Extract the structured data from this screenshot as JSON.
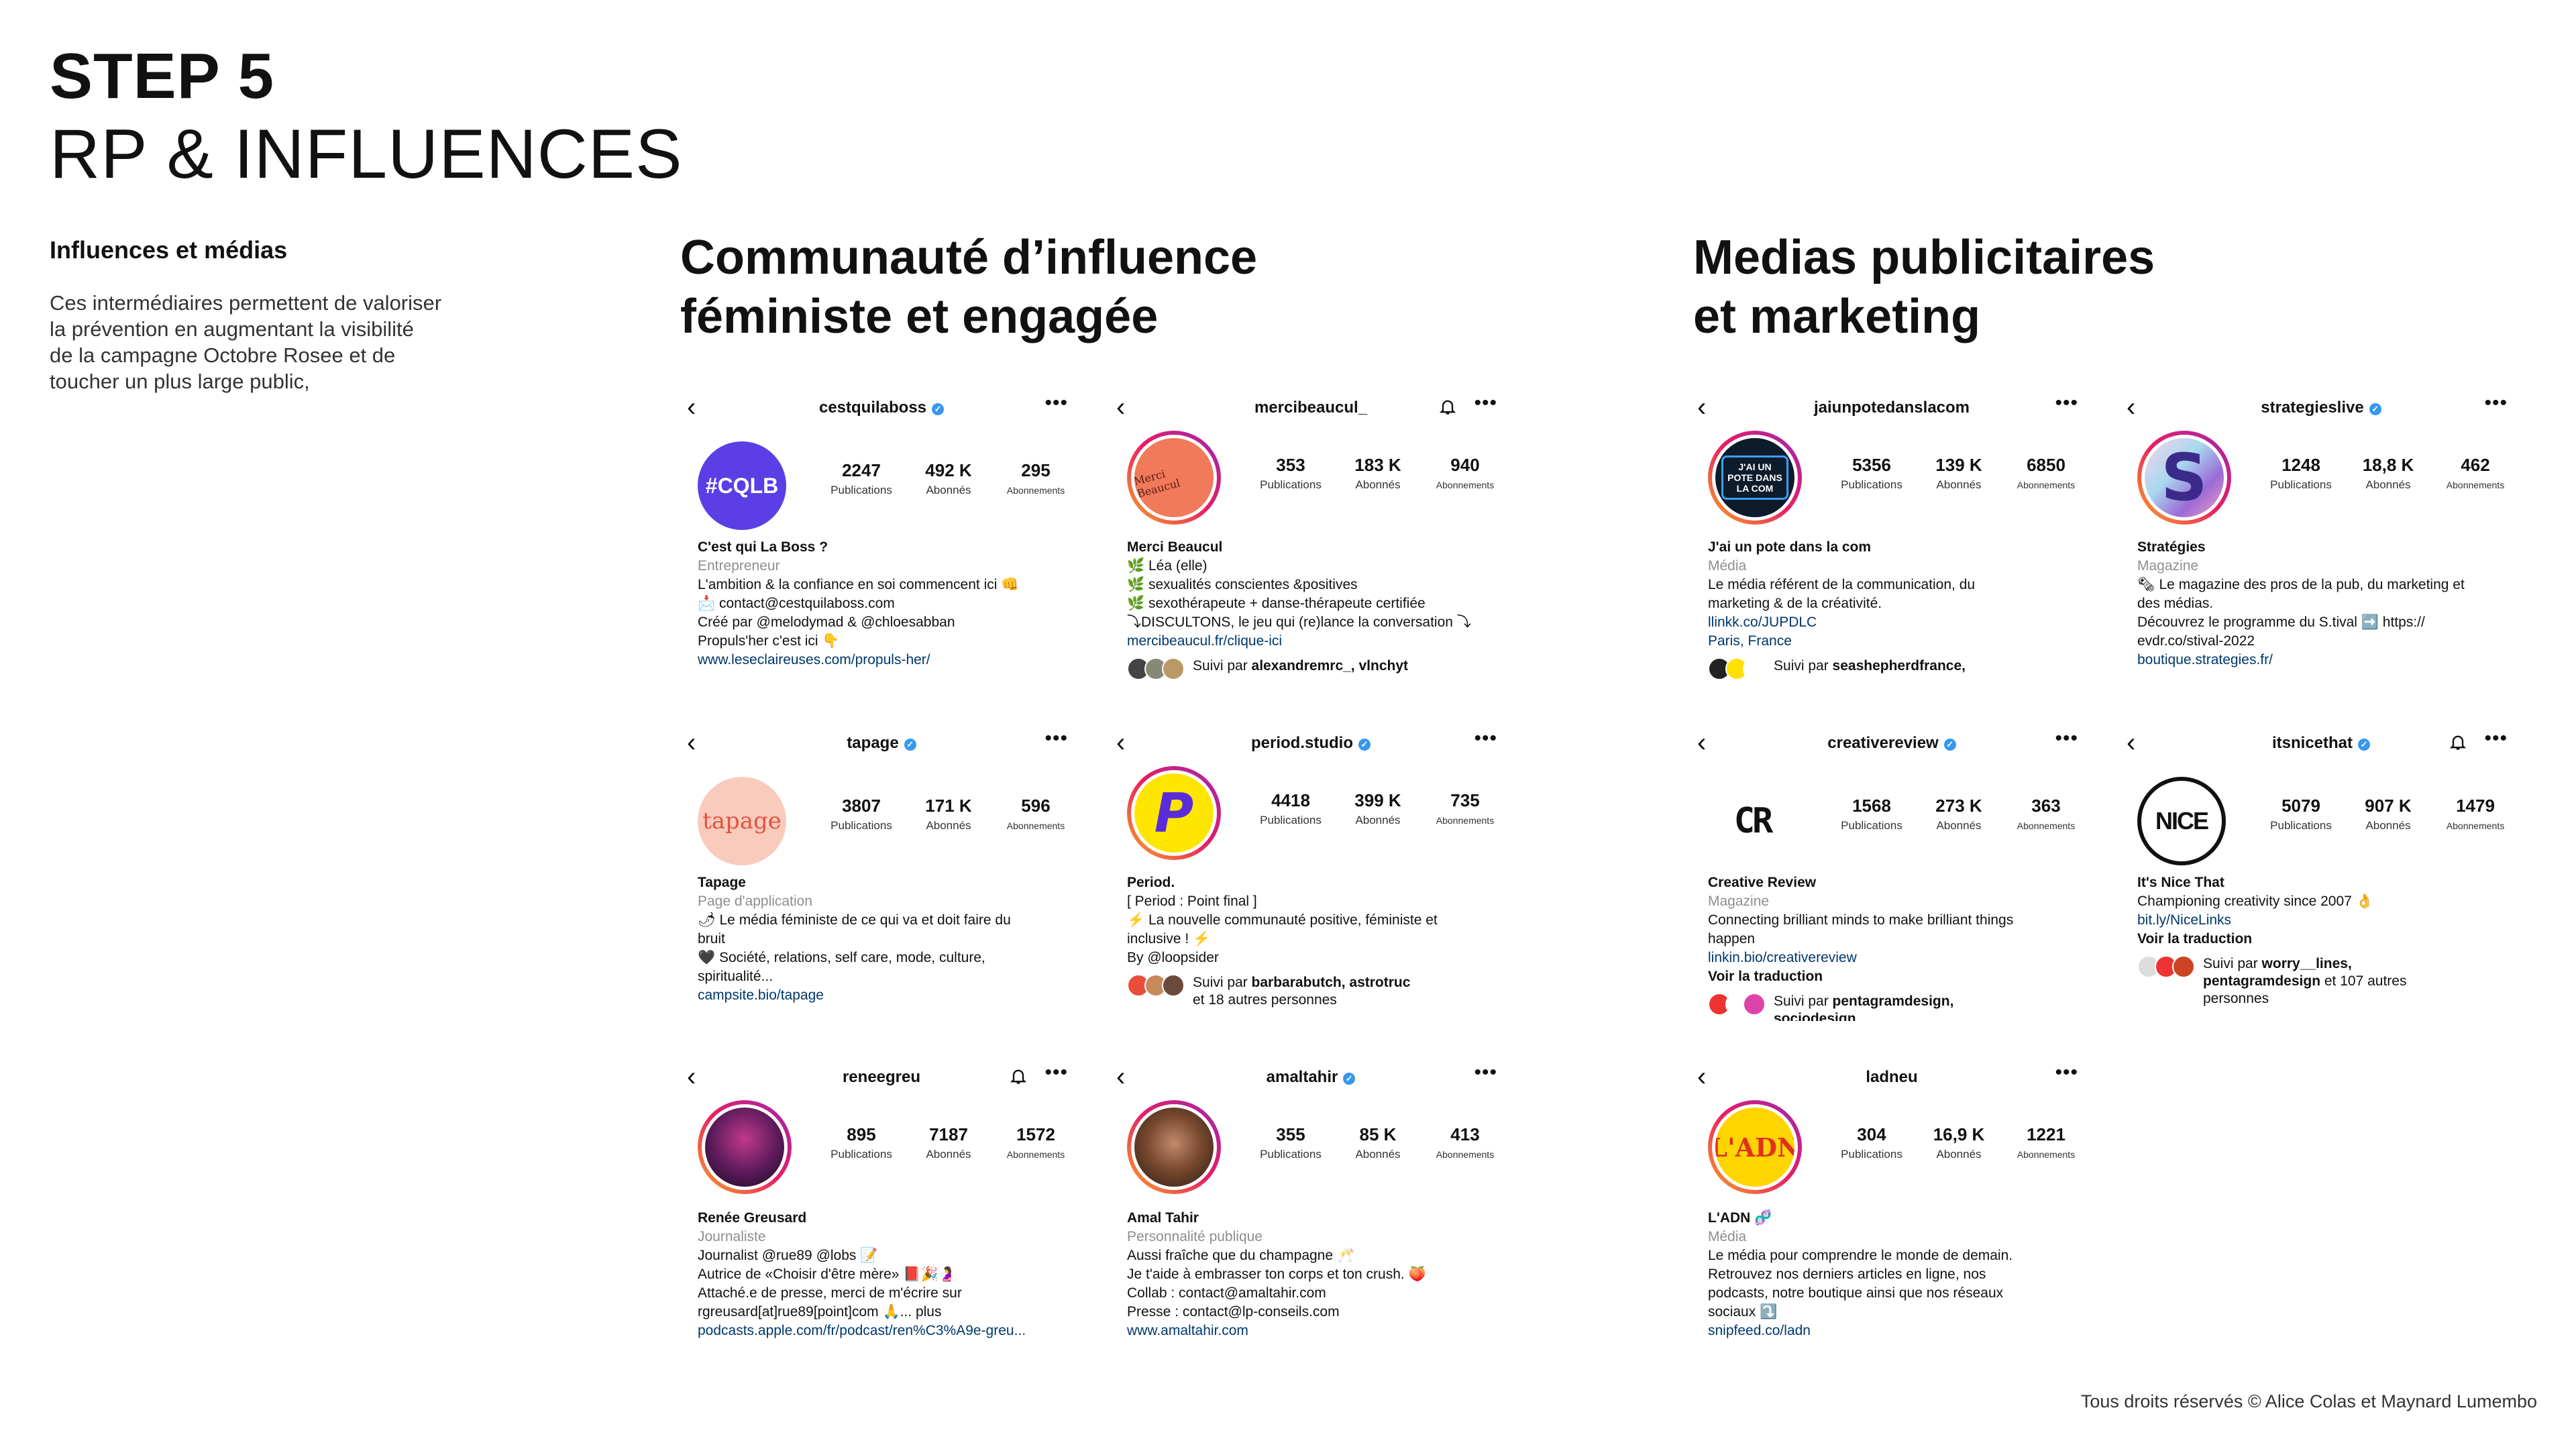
{
  "header": {
    "step": "STEP 5",
    "subtitle": "RP & INFLUENCES"
  },
  "intro": {
    "heading": "Influences et médias",
    "text": "Ces intermédiaires permettent de valoriser\nla prévention en augmentant  la visibilité\nde la campagne Octobre Rosee et de\ntoucher un plus large public,"
  },
  "columns": {
    "left": "Communauté d’influence\nféministe et engagée",
    "right": "Medias publicitaires\net marketing"
  },
  "footer": "Tous droits réservés © Alice Colas et Maynard Lumembo",
  "labels": {
    "publications": "Publications",
    "abonnes": "Abonnés",
    "abonnements": "Abonnements"
  },
  "profiles": {
    "cestquilaboss": {
      "handle": "cestquilaboss",
      "verified": true,
      "posts": "2247",
      "followers": "492 K",
      "following": "295",
      "avatar_text": "#CQLB",
      "name": "C'est qui La Boss ?",
      "category": "Entrepreneur",
      "lines": [
        "L'ambition & la confiance en soi commencent ici 👊",
        "📩 contact@cestquilaboss.com",
        "Créé par @melodymad & @chloesabban",
        "Propuls'her c'est ici 👇"
      ],
      "link": "www.leseclaireuses.com/propuls-her/"
    },
    "mercibeaucul": {
      "handle": "mercibeaucul_",
      "posts": "353",
      "followers": "183 K",
      "following": "940",
      "avatar_text": "Merci Beaucul",
      "name": "Merci Beaucul",
      "lines": [
        "🌿 Léa (elle)",
        "🌿 sexualités conscientes &positives",
        "🌿 sexothérapeute + danse-thérapeute certifiée",
        "⤵DISCULTONS, le jeu qui (re)lance la conversation ⤵"
      ],
      "link": "mercibeaucul.fr/clique-ici",
      "follow_prefix": "Suivi par ",
      "follow_names": "alexandremrc_, vlnchyt"
    },
    "jaiunpote": {
      "handle": "jaiunpotedanslacom",
      "posts": "5356",
      "followers": "139 K",
      "following": "6850",
      "avatar_text": "J'AI UN POTE DANS LA COM",
      "name": "J'ai un pote dans la com",
      "category": "Média",
      "lines": [
        "Le média référent de la communication, du",
        "marketing & de la créativité."
      ],
      "link": "llinkk.co/JUPDLC",
      "link2": "Paris, France",
      "follow_prefix": "Suivi par ",
      "follow_names": "seashepherdfrance,"
    },
    "strategies": {
      "handle": "strategieslive",
      "verified": true,
      "posts": "1248",
      "followers": "18,8 K",
      "following": "462",
      "avatar_text": "S",
      "name": "Stratégies",
      "category": "Magazine",
      "lines": [
        "🗞 Le magazine des pros de la pub, du marketing et",
        "des médias.",
        "Découvrez le programme du S.tival ➡️ https://",
        "evdr.co/stival-2022"
      ],
      "link": "boutique.strategies.fr/"
    },
    "tapage": {
      "handle": "tapage",
      "verified": true,
      "posts": "3807",
      "followers": "171 K",
      "following": "596",
      "avatar_text": "tapage",
      "name": "Tapage",
      "category": "Page d'application",
      "lines": [
        "🌶 Le média féministe de ce qui va et doit faire du",
        "bruit",
        "🖤 Société, relations, self care, mode, culture,",
        "spiritualité..."
      ],
      "link": "campsite.bio/tapage"
    },
    "period": {
      "handle": "period.studio",
      "verified": true,
      "posts": "4418",
      "followers": "399 K",
      "following": "735",
      "avatar_text": "P",
      "name": "Period.",
      "lines": [
        "[  Period : Point final ]",
        "⚡ La nouvelle communauté positive, féministe et",
        "inclusive ! ⚡",
        "By @loopsider"
      ],
      "follow_prefix": "Suivi par ",
      "follow_names": "barbarabutch, astrotruc",
      "follow_suffix": "et 18 autres personnes"
    },
    "creativereview": {
      "handle": "creativereview",
      "verified": true,
      "posts": "1568",
      "followers": "273 K",
      "following": "363",
      "avatar_text": "CR",
      "name": "Creative Review",
      "category": "Magazine",
      "lines": [
        "Connecting brilliant minds to make brilliant things",
        "happen"
      ],
      "link": "linkin.bio/creativereview",
      "translate": "Voir la traduction",
      "follow_prefix": "Suivi par ",
      "follow_names": "pentagramdesign, sociodesign"
    },
    "itsnicethat": {
      "handle": "itsnicethat",
      "verified": true,
      "posts": "5079",
      "followers": "907 K",
      "following": "1479",
      "avatar_text": "NICE",
      "name": "It's Nice That",
      "lines": [
        "Championing creativity since 2007 👌"
      ],
      "link": "bit.ly/NiceLinks",
      "translate": "Voir la traduction",
      "follow_prefix": "Suivi par ",
      "follow_names": "worry__lines,",
      "follow_names2": "pentagramdesign",
      "follow_suffix": " et 107 autres",
      "follow_suffix2": "personnes"
    },
    "reneegreu": {
      "handle": "reneegreu",
      "posts": "895",
      "followers": "7187",
      "following": "1572",
      "name": "Renée Greusard",
      "category": "Journaliste",
      "lines": [
        "Journalist @rue89 @lobs 📝",
        "Autrice de «Choisir d'être mère» 📕🎉🤰",
        "Attaché.e de presse, merci de m'écrire sur",
        "rgreusard[at]rue89[point]com 🙏... plus"
      ],
      "link": "podcasts.apple.com/fr/podcast/ren%C3%A9e-greu..."
    },
    "amaltahir": {
      "handle": "amaltahir",
      "verified": true,
      "posts": "355",
      "followers": "85 K",
      "following": "413",
      "name": "Amal Tahir",
      "category": "Personnalité publique",
      "lines": [
        "Aussi fraîche que du champagne 🥂",
        "Je t'aide à embrasser ton corps et ton crush. 🍑",
        "Collab : contact@amaltahir.com",
        "Presse : contact@lp-conseils.com"
      ],
      "link": "www.amaltahir.com"
    },
    "ladneu": {
      "handle": "ladneu",
      "posts": "304",
      "followers": "16,9 K",
      "following": "1221",
      "avatar_text": "L'ADN",
      "name": "L'ADN 🧬",
      "category": "Média",
      "lines": [
        "Le média pour comprendre le monde de demain.",
        "Retrouvez nos derniers articles en ligne, nos",
        "podcasts, notre boutique ainsi que nos réseaux",
        "sociaux ⤵️"
      ],
      "link": "snipfeed.co/ladn"
    }
  },
  "colors": {
    "verified": "#3897f0",
    "link": "#00376b",
    "cqlb": "#5b3ee6",
    "tapage_bg": "#f9cbbd",
    "tapage_text": "#e2533f",
    "period_bg": "#ffe600",
    "period_text": "#5a2bd8",
    "ladn_bg": "#ffd500",
    "ladn_text": "#e0301e"
  }
}
